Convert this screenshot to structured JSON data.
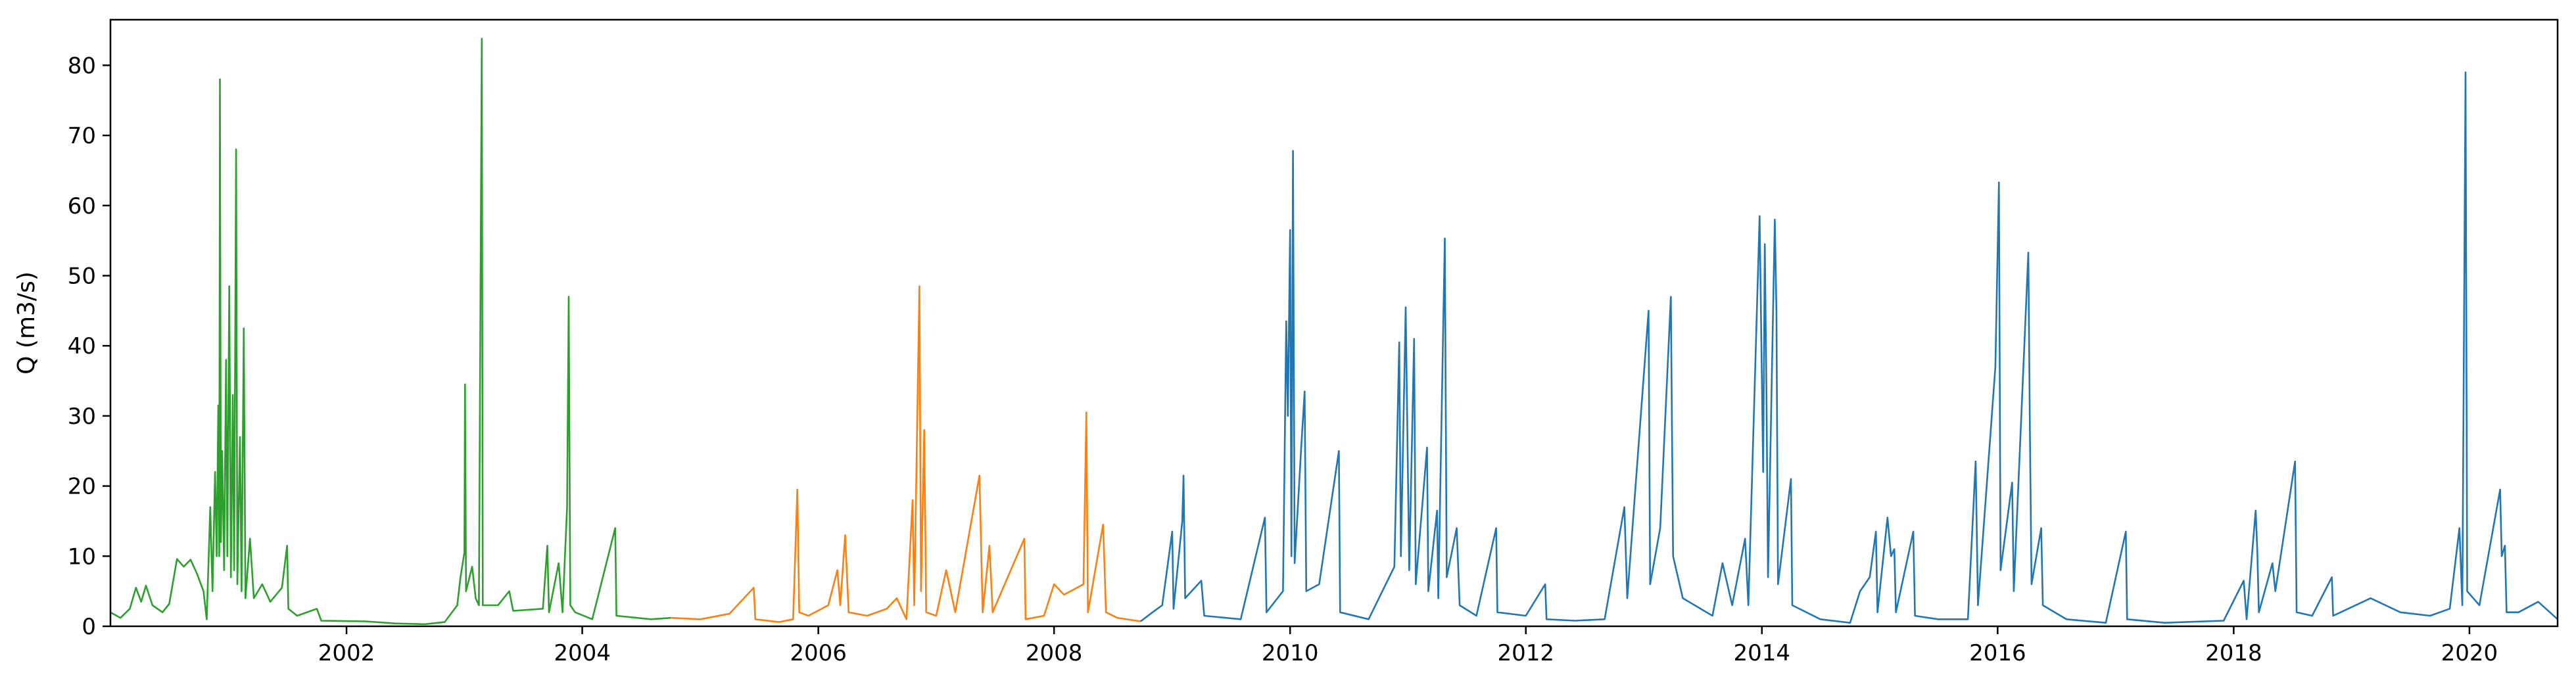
{
  "chart_data": {
    "type": "line",
    "title": "",
    "xlabel": "",
    "ylabel": "Q (m3/s)",
    "xlim": [
      "2000-01-01",
      "2020-09-30"
    ],
    "ylim": [
      0,
      86.5
    ],
    "grid": false,
    "legend": "none",
    "x_ticks": [
      "2002",
      "2004",
      "2006",
      "2008",
      "2010",
      "2012",
      "2014",
      "2016",
      "2018",
      "2020"
    ],
    "y_ticks": [
      0,
      10,
      20,
      30,
      40,
      50,
      60,
      70,
      80
    ],
    "series": [
      {
        "color": "#2ca02c",
        "points": [
          [
            "2000-01-01",
            2.0
          ],
          [
            "2000-02-01",
            1.2
          ],
          [
            "2000-03-01",
            2.5
          ],
          [
            "2000-03-20",
            5.5
          ],
          [
            "2000-04-05",
            3.5
          ],
          [
            "2000-04-20",
            5.8
          ],
          [
            "2000-05-10",
            3.0
          ],
          [
            "2000-06-10",
            2.0
          ],
          [
            "2000-07-01",
            3.2
          ],
          [
            "2000-07-25",
            9.6
          ],
          [
            "2000-08-15",
            8.5
          ],
          [
            "2000-09-05",
            9.5
          ],
          [
            "2000-09-25",
            7.5
          ],
          [
            "2000-10-15",
            5.0
          ],
          [
            "2000-10-25",
            1.0
          ],
          [
            "2000-11-05",
            17.0
          ],
          [
            "2000-11-12",
            5.0
          ],
          [
            "2000-11-20",
            22.0
          ],
          [
            "2000-11-25",
            10.0
          ],
          [
            "2000-11-30",
            31.5
          ],
          [
            "2000-12-03",
            10.0
          ],
          [
            "2000-12-05",
            78.0
          ],
          [
            "2000-12-08",
            12.0
          ],
          [
            "2000-12-12",
            25.0
          ],
          [
            "2000-12-18",
            8.0
          ],
          [
            "2000-12-24",
            38.0
          ],
          [
            "2000-12-28",
            10.0
          ],
          [
            "2001-01-03",
            48.5
          ],
          [
            "2001-01-08",
            7.0
          ],
          [
            "2001-01-14",
            33.0
          ],
          [
            "2001-01-18",
            8.0
          ],
          [
            "2001-01-24",
            68.0
          ],
          [
            "2001-01-28",
            6.0
          ],
          [
            "2001-02-05",
            27.0
          ],
          [
            "2001-02-10",
            5.0
          ],
          [
            "2001-02-17",
            42.5
          ],
          [
            "2001-02-22",
            4.0
          ],
          [
            "2001-03-08",
            12.5
          ],
          [
            "2001-03-20",
            4.0
          ],
          [
            "2001-04-15",
            6.0
          ],
          [
            "2001-05-10",
            3.5
          ],
          [
            "2001-06-15",
            5.5
          ],
          [
            "2001-07-01",
            11.5
          ],
          [
            "2001-07-05",
            2.5
          ],
          [
            "2001-08-01",
            1.5
          ],
          [
            "2001-10-01",
            2.5
          ],
          [
            "2001-10-15",
            0.8
          ],
          [
            "2002-03-01",
            0.7
          ],
          [
            "2002-06-01",
            0.4
          ],
          [
            "2002-09-01",
            0.3
          ],
          [
            "2002-11-01",
            0.6
          ],
          [
            "2002-12-10",
            3.0
          ],
          [
            "2002-12-20",
            7.0
          ],
          [
            "2003-01-01",
            10.5
          ],
          [
            "2003-01-03",
            34.5
          ],
          [
            "2003-01-06",
            5.0
          ],
          [
            "2003-01-25",
            8.5
          ],
          [
            "2003-02-05",
            4.0
          ],
          [
            "2003-02-15",
            3.0
          ],
          [
            "2003-02-24",
            83.8
          ],
          [
            "2003-02-27",
            3.0
          ],
          [
            "2003-04-15",
            3.0
          ],
          [
            "2003-05-20",
            5.0
          ],
          [
            "2003-06-01",
            2.2
          ],
          [
            "2003-09-01",
            2.5
          ],
          [
            "2003-09-15",
            11.5
          ],
          [
            "2003-09-20",
            2.0
          ],
          [
            "2003-10-20",
            9.0
          ],
          [
            "2003-11-01",
            2.0
          ],
          [
            "2003-11-15",
            17.0
          ],
          [
            "2003-11-20",
            47.0
          ],
          [
            "2003-11-25",
            3.0
          ],
          [
            "2003-12-10",
            2.0
          ],
          [
            "2004-02-01",
            1.0
          ],
          [
            "2004-04-12",
            14.0
          ],
          [
            "2004-04-16",
            1.5
          ],
          [
            "2004-08-01",
            1.0
          ],
          [
            "2004-10-01",
            1.2
          ]
        ]
      },
      {
        "color": "#ff7f0e",
        "points": [
          [
            "2004-10-01",
            1.2
          ],
          [
            "2005-01-01",
            1.0
          ],
          [
            "2005-04-01",
            1.8
          ],
          [
            "2005-06-15",
            5.5
          ],
          [
            "2005-06-20",
            1.0
          ],
          [
            "2005-09-01",
            0.6
          ],
          [
            "2005-10-15",
            1.0
          ],
          [
            "2005-10-28",
            19.5
          ],
          [
            "2005-11-03",
            2.0
          ],
          [
            "2005-12-01",
            1.5
          ],
          [
            "2006-02-01",
            3.0
          ],
          [
            "2006-03-01",
            8.0
          ],
          [
            "2006-03-10",
            3.0
          ],
          [
            "2006-03-25",
            13.0
          ],
          [
            "2006-04-05",
            2.0
          ],
          [
            "2006-06-01",
            1.5
          ],
          [
            "2006-08-01",
            2.5
          ],
          [
            "2006-09-01",
            4.0
          ],
          [
            "2006-10-01",
            1.0
          ],
          [
            "2006-10-20",
            18.0
          ],
          [
            "2006-10-25",
            3.0
          ],
          [
            "2006-11-10",
            48.5
          ],
          [
            "2006-11-15",
            5.0
          ],
          [
            "2006-11-25",
            28.0
          ],
          [
            "2006-12-01",
            2.0
          ],
          [
            "2007-01-01",
            1.5
          ],
          [
            "2007-02-01",
            8.0
          ],
          [
            "2007-03-01",
            2.0
          ],
          [
            "2007-05-15",
            21.5
          ],
          [
            "2007-05-25",
            2.0
          ],
          [
            "2007-06-15",
            11.5
          ],
          [
            "2007-06-25",
            2.0
          ],
          [
            "2007-10-01",
            12.5
          ],
          [
            "2007-10-05",
            1.0
          ],
          [
            "2007-12-01",
            1.5
          ],
          [
            "2008-01-01",
            6.0
          ],
          [
            "2008-02-01",
            4.5
          ],
          [
            "2008-04-01",
            6.0
          ],
          [
            "2008-04-10",
            30.5
          ],
          [
            "2008-04-15",
            2.0
          ],
          [
            "2008-06-01",
            14.5
          ],
          [
            "2008-06-10",
            2.0
          ],
          [
            "2008-07-15",
            1.2
          ],
          [
            "2008-09-25",
            0.7
          ]
        ]
      },
      {
        "color": "#1f77b4",
        "points": [
          [
            "2008-09-25",
            0.7
          ],
          [
            "2008-11-01",
            2.0
          ],
          [
            "2008-12-01",
            3.0
          ],
          [
            "2009-01-01",
            13.5
          ],
          [
            "2009-01-05",
            2.5
          ],
          [
            "2009-02-01",
            15.0
          ],
          [
            "2009-02-05",
            21.5
          ],
          [
            "2009-02-10",
            4.0
          ],
          [
            "2009-04-01",
            6.5
          ],
          [
            "2009-04-10",
            1.5
          ],
          [
            "2009-08-01",
            1.0
          ],
          [
            "2009-10-15",
            15.5
          ],
          [
            "2009-10-20",
            2.0
          ],
          [
            "2009-12-10",
            5.0
          ],
          [
            "2009-12-20",
            43.5
          ],
          [
            "2009-12-25",
            30.0
          ],
          [
            "2010-01-01",
            56.5
          ],
          [
            "2010-01-05",
            10.0
          ],
          [
            "2010-01-10",
            67.8
          ],
          [
            "2010-01-15",
            9.0
          ],
          [
            "2010-02-05",
            26.0
          ],
          [
            "2010-02-15",
            33.5
          ],
          [
            "2010-02-20",
            5.0
          ],
          [
            "2010-04-01",
            6.0
          ],
          [
            "2010-06-01",
            25.0
          ],
          [
            "2010-06-05",
            2.0
          ],
          [
            "2010-09-01",
            1.0
          ],
          [
            "2010-11-20",
            8.5
          ],
          [
            "2010-12-05",
            40.5
          ],
          [
            "2010-12-10",
            10.0
          ],
          [
            "2010-12-25",
            45.5
          ],
          [
            "2011-01-05",
            8.0
          ],
          [
            "2011-01-20",
            41.0
          ],
          [
            "2011-01-25",
            6.0
          ],
          [
            "2011-03-01",
            25.5
          ],
          [
            "2011-03-05",
            5.0
          ],
          [
            "2011-04-01",
            16.5
          ],
          [
            "2011-04-05",
            4.0
          ],
          [
            "2011-04-25",
            55.3
          ],
          [
            "2011-05-01",
            7.0
          ],
          [
            "2011-06-01",
            14.0
          ],
          [
            "2011-06-10",
            3.0
          ],
          [
            "2011-08-01",
            1.5
          ],
          [
            "2011-10-01",
            14.0
          ],
          [
            "2011-10-05",
            2.0
          ],
          [
            "2012-01-01",
            1.5
          ],
          [
            "2012-03-01",
            6.0
          ],
          [
            "2012-03-05",
            1.0
          ],
          [
            "2012-06-01",
            0.8
          ],
          [
            "2012-09-01",
            1.0
          ],
          [
            "2012-11-01",
            17.0
          ],
          [
            "2012-11-10",
            4.0
          ],
          [
            "2013-01-15",
            45.0
          ],
          [
            "2013-01-20",
            6.0
          ],
          [
            "2013-02-20",
            14.0
          ],
          [
            "2013-03-25",
            47.0
          ],
          [
            "2013-04-01",
            10.0
          ],
          [
            "2013-05-01",
            4.0
          ],
          [
            "2013-08-01",
            1.5
          ],
          [
            "2013-09-01",
            9.0
          ],
          [
            "2013-10-01",
            3.0
          ],
          [
            "2013-11-10",
            12.5
          ],
          [
            "2013-11-20",
            3.0
          ],
          [
            "2013-12-25",
            58.5
          ],
          [
            "2014-01-05",
            22.0
          ],
          [
            "2014-01-10",
            54.5
          ],
          [
            "2014-01-15",
            33.5
          ],
          [
            "2014-01-20",
            7.0
          ],
          [
            "2014-02-10",
            58.0
          ],
          [
            "2014-02-15",
            45.0
          ],
          [
            "2014-02-20",
            6.0
          ],
          [
            "2014-04-01",
            21.0
          ],
          [
            "2014-04-05",
            3.0
          ],
          [
            "2014-07-01",
            1.0
          ],
          [
            "2014-10-01",
            0.5
          ],
          [
            "2014-11-01",
            5.0
          ],
          [
            "2014-12-01",
            7.0
          ],
          [
            "2014-12-20",
            13.5
          ],
          [
            "2014-12-25",
            2.0
          ],
          [
            "2015-01-25",
            15.5
          ],
          [
            "2015-02-05",
            10.0
          ],
          [
            "2015-02-15",
            11.0
          ],
          [
            "2015-02-20",
            2.0
          ],
          [
            "2015-04-15",
            13.5
          ],
          [
            "2015-04-20",
            1.5
          ],
          [
            "2015-07-01",
            1.0
          ],
          [
            "2015-10-01",
            1.0
          ],
          [
            "2015-10-25",
            23.5
          ],
          [
            "2015-11-01",
            3.0
          ],
          [
            "2015-12-25",
            37.0
          ],
          [
            "2016-01-05",
            63.3
          ],
          [
            "2016-01-10",
            8.0
          ],
          [
            "2016-02-15",
            20.5
          ],
          [
            "2016-02-20",
            5.0
          ],
          [
            "2016-04-05",
            53.3
          ],
          [
            "2016-04-10",
            28.0
          ],
          [
            "2016-04-15",
            6.0
          ],
          [
            "2016-05-15",
            14.0
          ],
          [
            "2016-05-20",
            3.0
          ],
          [
            "2016-08-01",
            1.0
          ],
          [
            "2016-12-01",
            0.5
          ],
          [
            "2017-02-01",
            13.5
          ],
          [
            "2017-02-05",
            1.0
          ],
          [
            "2017-06-01",
            0.5
          ],
          [
            "2017-12-01",
            0.8
          ],
          [
            "2018-02-01",
            6.5
          ],
          [
            "2018-02-10",
            1.0
          ],
          [
            "2018-03-10",
            16.5
          ],
          [
            "2018-03-15",
            11.0
          ],
          [
            "2018-03-20",
            2.0
          ],
          [
            "2018-05-01",
            9.0
          ],
          [
            "2018-05-10",
            5.0
          ],
          [
            "2018-07-10",
            23.5
          ],
          [
            "2018-07-15",
            2.0
          ],
          [
            "2018-09-01",
            1.5
          ],
          [
            "2018-11-01",
            7.0
          ],
          [
            "2018-11-05",
            1.5
          ],
          [
            "2019-03-01",
            4.0
          ],
          [
            "2019-06-01",
            2.0
          ],
          [
            "2019-09-01",
            1.5
          ],
          [
            "2019-11-01",
            2.5
          ],
          [
            "2019-12-01",
            14.0
          ],
          [
            "2019-12-10",
            3.0
          ],
          [
            "2019-12-20",
            79.0
          ],
          [
            "2019-12-25",
            5.0
          ],
          [
            "2020-02-01",
            3.0
          ],
          [
            "2020-04-05",
            19.5
          ],
          [
            "2020-04-10",
            10.0
          ],
          [
            "2020-04-20",
            11.5
          ],
          [
            "2020-04-25",
            2.0
          ],
          [
            "2020-06-01",
            2.0
          ],
          [
            "2020-08-01",
            3.5
          ],
          [
            "2020-09-30",
            1.0
          ]
        ]
      }
    ]
  }
}
